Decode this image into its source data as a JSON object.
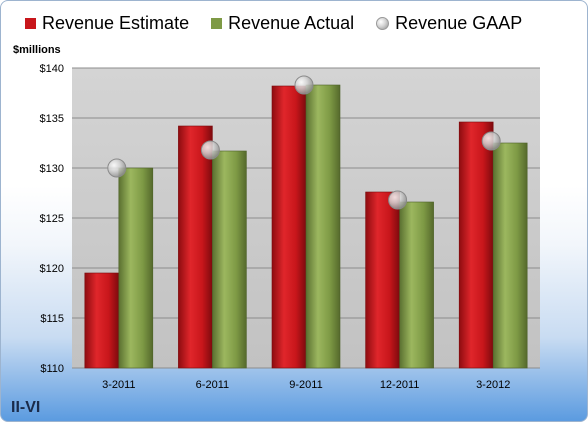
{
  "legend": {
    "estimate": "Revenue Estimate",
    "actual": "Revenue Actual",
    "gaap": "Revenue GAAP"
  },
  "unit_label": "$millions",
  "company": "II-VI",
  "colors": {
    "estimate": "#c8161b",
    "actual": "#7e9a45",
    "gaap": "#c9c9c9",
    "plot_background": "#cfcfcf",
    "company_text": "#1a2b4a"
  },
  "chart_data": {
    "type": "bar",
    "categories": [
      "3-2011",
      "6-2011",
      "9-2011",
      "12-2011",
      "3-2012"
    ],
    "series": [
      {
        "name": "Revenue Estimate",
        "values": [
          119.5,
          134.2,
          138.2,
          127.6,
          134.6
        ]
      },
      {
        "name": "Revenue Actual",
        "values": [
          130.0,
          131.7,
          138.3,
          126.6,
          132.5
        ]
      },
      {
        "name": "Revenue GAAP",
        "values": [
          130.0,
          131.8,
          138.3,
          126.8,
          132.7
        ],
        "style": "marker"
      }
    ],
    "ylim": [
      110,
      140
    ],
    "yticks": [
      "$110",
      "$115",
      "$120",
      "$125",
      "$130",
      "$135",
      "$140"
    ],
    "ylabel": "$millions",
    "grid": true,
    "legend_position": "top"
  }
}
